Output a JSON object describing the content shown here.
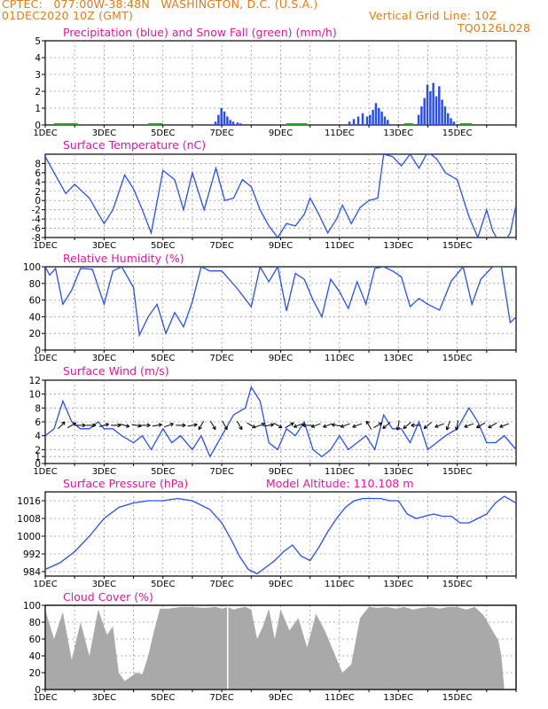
{
  "header": {
    "line1_left": "CPTEC:   077:00W-38:48N   WASHINGTON, D.C. (U.S.A.)",
    "line2_left": "01DEC2020 10Z (GMT)",
    "line2_right": "Vertical Grid Line: 10Z",
    "line3_right": "TQ0126L028"
  },
  "colors": {
    "header": "#e07b1a",
    "title": "#e0179a",
    "line": "#2a4fe8",
    "snow": "#2ca02c",
    "cloud": "#a9a9a9",
    "wind_arrow": "#000000"
  },
  "x_ticks": [
    "1DEC",
    "3DEC",
    "5DEC",
    "7DEC",
    "9DEC",
    "11DEC",
    "13DEC",
    "15DEC"
  ],
  "chart_data": [
    {
      "type": "bar",
      "title": "Precipitation (blue) and Snow Fall (green) (mm/h)",
      "ylim": [
        0,
        5
      ],
      "yticks": [
        0,
        1,
        2,
        3,
        4,
        5
      ],
      "grid": true,
      "series": [
        {
          "name": "Precipitation",
          "events": [
            {
              "x": 5.75,
              "w": 0.09,
              "v": 0.2
            },
            {
              "x": 5.85,
              "w": 0.09,
              "v": 0.6
            },
            {
              "x": 5.95,
              "w": 0.09,
              "v": 1.0
            },
            {
              "x": 6.05,
              "w": 0.09,
              "v": 0.8
            },
            {
              "x": 6.15,
              "w": 0.09,
              "v": 0.5
            },
            {
              "x": 6.25,
              "w": 0.09,
              "v": 0.3
            },
            {
              "x": 6.35,
              "w": 0.09,
              "v": 0.2
            },
            {
              "x": 6.5,
              "w": 0.09,
              "v": 0.15
            },
            {
              "x": 6.6,
              "w": 0.09,
              "v": 0.1
            },
            {
              "x": 10.3,
              "w": 0.09,
              "v": 0.2
            },
            {
              "x": 10.45,
              "w": 0.09,
              "v": 0.35
            },
            {
              "x": 10.6,
              "w": 0.09,
              "v": 0.5
            },
            {
              "x": 10.75,
              "w": 0.09,
              "v": 0.7
            },
            {
              "x": 10.9,
              "w": 0.09,
              "v": 0.5
            },
            {
              "x": 11.0,
              "w": 0.09,
              "v": 0.6
            },
            {
              "x": 11.1,
              "w": 0.09,
              "v": 0.9
            },
            {
              "x": 11.2,
              "w": 0.09,
              "v": 1.3
            },
            {
              "x": 11.3,
              "w": 0.09,
              "v": 1.0
            },
            {
              "x": 11.4,
              "w": 0.09,
              "v": 0.8
            },
            {
              "x": 11.5,
              "w": 0.09,
              "v": 0.5
            },
            {
              "x": 11.6,
              "w": 0.09,
              "v": 0.3
            },
            {
              "x": 12.65,
              "w": 0.09,
              "v": 0.6
            },
            {
              "x": 12.75,
              "w": 0.09,
              "v": 1.1
            },
            {
              "x": 12.85,
              "w": 0.09,
              "v": 1.6
            },
            {
              "x": 12.95,
              "w": 0.09,
              "v": 2.4
            },
            {
              "x": 13.05,
              "w": 0.09,
              "v": 2.0
            },
            {
              "x": 13.15,
              "w": 0.09,
              "v": 2.5
            },
            {
              "x": 13.25,
              "w": 0.09,
              "v": 1.7
            },
            {
              "x": 13.35,
              "w": 0.09,
              "v": 2.3
            },
            {
              "x": 13.45,
              "w": 0.09,
              "v": 1.5
            },
            {
              "x": 13.55,
              "w": 0.09,
              "v": 1.1
            },
            {
              "x": 13.65,
              "w": 0.09,
              "v": 0.7
            },
            {
              "x": 13.75,
              "w": 0.09,
              "v": 0.4
            },
            {
              "x": 13.85,
              "w": 0.09,
              "v": 0.2
            }
          ]
        },
        {
          "name": "Snow Fall",
          "spans": [
            [
              0.3,
              1.1
            ],
            [
              3.5,
              4.0
            ],
            [
              8.2,
              8.9
            ],
            [
              12.2,
              12.5
            ],
            [
              14.1,
              14.5
            ]
          ]
        }
      ]
    },
    {
      "type": "line",
      "title": "Surface Temperature (nC)",
      "ylim": [
        -8,
        10
      ],
      "yticks": [
        -8,
        -6,
        -4,
        -2,
        0,
        2,
        4,
        6,
        8
      ],
      "grid": true,
      "x": [
        0,
        0.3,
        0.7,
        1.0,
        1.5,
        2.0,
        2.3,
        2.7,
        3.0,
        3.3,
        3.6,
        4.0,
        4.4,
        4.7,
        5.0,
        5.4,
        5.8,
        6.1,
        6.4,
        6.7,
        7.0,
        7.3,
        7.6,
        7.9,
        8.2,
        8.5,
        8.8,
        9.0,
        9.3,
        9.6,
        9.9,
        10.1,
        10.4,
        10.7,
        11.0,
        11.3,
        11.5,
        11.8,
        12.1,
        12.4,
        12.7,
        13.0,
        13.3,
        13.6,
        14.0,
        14.4,
        14.7,
        15.0,
        15.2,
        15.5,
        15.8,
        16.0
      ],
      "y": [
        9.5,
        6.0,
        1.5,
        3.5,
        0.5,
        -5.0,
        -2.0,
        5.5,
        2.5,
        -2.0,
        -7.0,
        6.5,
        4.5,
        -2.0,
        6.0,
        -2.0,
        7.0,
        0.0,
        0.5,
        4.5,
        3.0,
        -2.0,
        -5.5,
        -8.0,
        -5.0,
        -5.5,
        -3.0,
        0.5,
        -3.0,
        -7.0,
        -4.0,
        -1.0,
        -5.0,
        -1.5,
        0.0,
        0.5,
        10.0,
        9.5,
        7.5,
        10.0,
        7.0,
        10.5,
        9.0,
        6.0,
        4.5,
        -3.5,
        -8.0,
        -2.0,
        -6.5,
        -10.0,
        -7.0,
        -1.0
      ]
    },
    {
      "type": "line",
      "title": "Relative Humidity (%)",
      "ylim": [
        0,
        100
      ],
      "yticks": [
        0,
        20,
        40,
        60,
        80,
        100
      ],
      "grid": true,
      "x": [
        0,
        0.15,
        0.35,
        0.6,
        0.9,
        1.2,
        1.6,
        2.0,
        2.3,
        2.6,
        3.0,
        3.2,
        3.5,
        3.8,
        4.1,
        4.4,
        4.7,
        5.0,
        5.3,
        5.6,
        6.0,
        6.5,
        7.0,
        7.3,
        7.6,
        7.9,
        8.2,
        8.5,
        8.8,
        9.1,
        9.4,
        9.7,
        10.0,
        10.3,
        10.6,
        10.9,
        11.2,
        11.5,
        11.8,
        12.1,
        12.4,
        12.7,
        13.0,
        13.4,
        13.8,
        14.2,
        14.5,
        14.8,
        15.2,
        15.5,
        15.8,
        16.0
      ],
      "y": [
        100,
        90,
        98,
        55,
        72,
        98,
        97,
        55,
        95,
        100,
        75,
        18,
        40,
        55,
        20,
        45,
        28,
        58,
        100,
        95,
        95,
        75,
        52,
        100,
        82,
        100,
        47,
        92,
        85,
        60,
        40,
        85,
        70,
        50,
        82,
        55,
        98,
        100,
        95,
        88,
        52,
        62,
        55,
        48,
        83,
        100,
        55,
        85,
        100,
        100,
        33,
        40
      ]
    },
    {
      "type": "line",
      "title": "Surface Wind (m/s)",
      "ylim": [
        0,
        12
      ],
      "yticks": [
        0,
        1,
        2,
        4,
        6,
        8,
        10,
        12
      ],
      "grid": true,
      "x": [
        0,
        0.3,
        0.6,
        0.9,
        1.2,
        1.5,
        1.8,
        2.0,
        2.3,
        2.6,
        3.0,
        3.3,
        3.6,
        4.0,
        4.3,
        4.6,
        5.0,
        5.3,
        5.6,
        6.0,
        6.4,
        6.8,
        7.0,
        7.3,
        7.6,
        7.9,
        8.2,
        8.5,
        8.8,
        9.1,
        9.4,
        9.7,
        10.0,
        10.3,
        10.6,
        10.9,
        11.2,
        11.5,
        11.8,
        12.1,
        12.4,
        12.7,
        13.0,
        13.3,
        13.6,
        14.0,
        14.4,
        14.7,
        15.0,
        15.3,
        15.6,
        16.0
      ],
      "y": [
        4,
        5,
        9,
        6,
        5,
        5,
        6,
        5,
        5,
        4,
        3,
        4,
        2,
        5,
        3,
        4,
        2,
        4,
        1,
        4,
        7,
        8,
        11,
        9,
        3,
        2,
        5,
        4,
        6,
        2,
        1,
        2,
        4,
        2,
        3,
        4,
        2,
        7,
        5,
        5,
        3,
        6,
        2,
        3,
        4,
        5,
        8,
        6,
        3,
        3,
        4,
        2
      ],
      "arrows": [
        {
          "x": 0.55,
          "d": 45
        },
        {
          "x": 0.9,
          "d": 30
        },
        {
          "x": 1.2,
          "d": 0
        },
        {
          "x": 1.55,
          "d": 0
        },
        {
          "x": 2.0,
          "d": 15
        },
        {
          "x": 2.4,
          "d": 0
        },
        {
          "x": 2.7,
          "d": -15
        },
        {
          "x": 3.1,
          "d": -10
        },
        {
          "x": 3.4,
          "d": 0
        },
        {
          "x": 3.8,
          "d": 10
        },
        {
          "x": 4.2,
          "d": 20
        },
        {
          "x": 4.6,
          "d": 0
        },
        {
          "x": 5.0,
          "d": 10
        },
        {
          "x": 5.3,
          "d": 240
        },
        {
          "x": 5.7,
          "d": 300
        },
        {
          "x": 6.1,
          "d": 300
        },
        {
          "x": 6.6,
          "d": 300
        },
        {
          "x": 7.0,
          "d": 330
        },
        {
          "x": 7.3,
          "d": 20
        },
        {
          "x": 7.6,
          "d": 10
        },
        {
          "x": 7.9,
          "d": 330
        },
        {
          "x": 8.3,
          "d": 30
        },
        {
          "x": 8.6,
          "d": 200
        },
        {
          "x": 8.9,
          "d": 180
        },
        {
          "x": 9.2,
          "d": 200
        },
        {
          "x": 9.6,
          "d": 200
        },
        {
          "x": 9.9,
          "d": 170
        },
        {
          "x": 10.2,
          "d": 200
        },
        {
          "x": 10.6,
          "d": 200
        },
        {
          "x": 11.0,
          "d": 120
        },
        {
          "x": 11.3,
          "d": 30
        },
        {
          "x": 11.6,
          "d": 220
        },
        {
          "x": 12.0,
          "d": 260
        },
        {
          "x": 12.3,
          "d": 220
        },
        {
          "x": 12.6,
          "d": 180
        },
        {
          "x": 13.0,
          "d": 220
        },
        {
          "x": 13.4,
          "d": 200
        },
        {
          "x": 13.7,
          "d": 250
        },
        {
          "x": 14.0,
          "d": 260
        },
        {
          "x": 14.4,
          "d": 200
        },
        {
          "x": 14.8,
          "d": 210
        },
        {
          "x": 15.2,
          "d": 210
        },
        {
          "x": 15.6,
          "d": 200
        }
      ]
    },
    {
      "type": "line",
      "title": "Surface Pressure (hPa)",
      "annotation": "Model Altitude: 110.108  m",
      "ylim": [
        982,
        1020
      ],
      "yticks": [
        984,
        992,
        1000,
        1008,
        1016
      ],
      "grid": true,
      "x": [
        0,
        0.5,
        1.0,
        1.5,
        2.0,
        2.5,
        3.0,
        3.5,
        4.0,
        4.5,
        5.0,
        5.3,
        5.6,
        6.0,
        6.3,
        6.6,
        6.9,
        7.2,
        7.5,
        7.8,
        8.1,
        8.4,
        8.7,
        9.0,
        9.3,
        9.6,
        9.9,
        10.2,
        10.5,
        10.8,
        11.1,
        11.4,
        11.7,
        12.0,
        12.3,
        12.6,
        12.9,
        13.2,
        13.5,
        13.8,
        14.1,
        14.4,
        14.7,
        15.0,
        15.3,
        15.6,
        16.0
      ],
      "y": [
        985,
        988,
        993,
        1000,
        1008,
        1013,
        1015,
        1016,
        1016,
        1017,
        1016,
        1014,
        1012,
        1006,
        999,
        991,
        985,
        983,
        986,
        989,
        993,
        996,
        991,
        989,
        995,
        1002,
        1008,
        1013,
        1016,
        1017,
        1017,
        1017,
        1016,
        1016,
        1010,
        1008,
        1009,
        1010,
        1009,
        1009,
        1006,
        1006,
        1008,
        1010,
        1015,
        1018,
        1015
      ]
    },
    {
      "type": "area",
      "title": "Cloud Cover (%)",
      "ylim": [
        0,
        100
      ],
      "yticks": [
        0,
        20,
        40,
        60,
        80,
        100
      ],
      "grid": true,
      "x": [
        0,
        0.3,
        0.6,
        0.9,
        1.2,
        1.5,
        1.8,
        2.1,
        2.3,
        2.5,
        2.7,
        2.9,
        3.1,
        3.3,
        3.5,
        3.7,
        3.9,
        4.2,
        4.6,
        5.0,
        5.4,
        5.8,
        6.0,
        6.2,
        6.4,
        6.6,
        6.8,
        7.0,
        7.2,
        7.4,
        7.6,
        7.8,
        8.0,
        8.3,
        8.6,
        8.9,
        9.2,
        9.5,
        9.8,
        10.1,
        10.4,
        10.7,
        11.0,
        11.3,
        11.6,
        11.9,
        12.2,
        12.5,
        12.8,
        13.1,
        13.4,
        13.7,
        14.0,
        14.3,
        14.6,
        14.9,
        15.2,
        15.4,
        15.5,
        15.6,
        16.0
      ],
      "y": [
        95,
        60,
        92,
        35,
        80,
        40,
        95,
        65,
        75,
        20,
        10,
        15,
        20,
        18,
        40,
        70,
        96,
        96,
        98,
        98,
        97,
        98,
        96,
        98,
        95,
        97,
        98,
        95,
        60,
        75,
        96,
        60,
        95,
        70,
        85,
        50,
        90,
        70,
        45,
        20,
        30,
        85,
        98,
        97,
        98,
        96,
        98,
        95,
        97,
        98,
        96,
        98,
        98,
        95,
        98,
        88,
        70,
        58,
        40,
        0,
        0
      ]
    }
  ]
}
